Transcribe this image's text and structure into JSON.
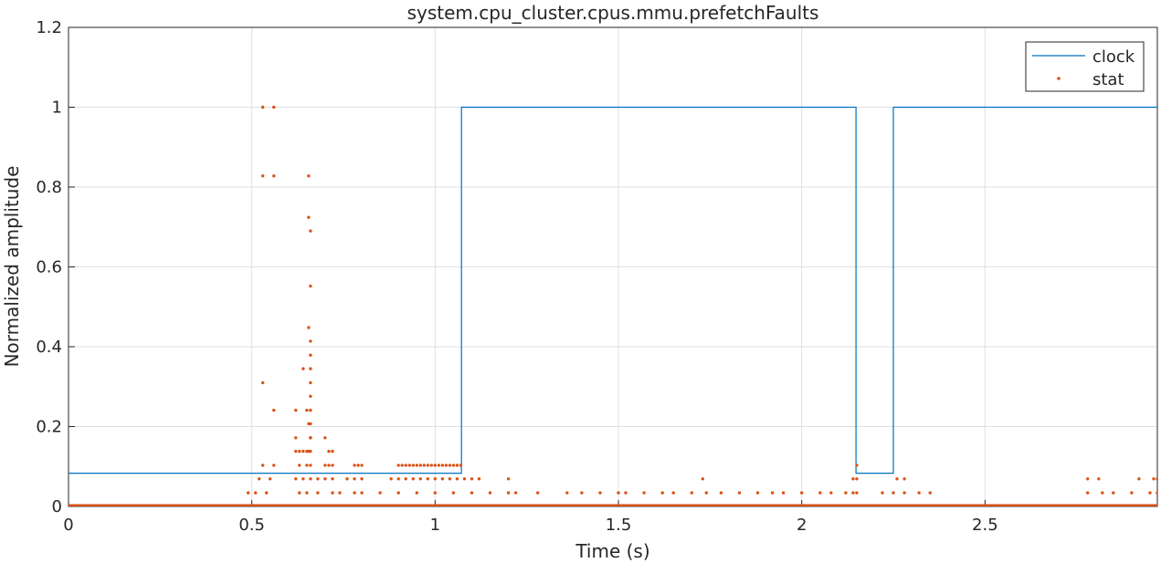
{
  "chart_data": {
    "type": "line",
    "title": "system.cpu_cluster.cpus.mmu.prefetchFaults",
    "xlabel": "Time (s)",
    "ylabel": "Normalized amplitude",
    "xlim": [
      0,
      2.97
    ],
    "ylim": [
      0,
      1.2
    ],
    "xticks": [
      0,
      0.5,
      1,
      1.5,
      2,
      2.5
    ],
    "xtick_labels": [
      "0",
      "0.5",
      "1",
      "1.5",
      "2",
      "2.5"
    ],
    "yticks": [
      0,
      0.2,
      0.4,
      0.6,
      0.8,
      1,
      1.2
    ],
    "ytick_labels": [
      "0",
      "0.2",
      "0.4",
      "0.6",
      "0.8",
      "1",
      "1.2"
    ],
    "grid": true,
    "legend_position": "top-right",
    "series": [
      {
        "name": "clock",
        "style": "line",
        "color": "#0072BD",
        "x": [
          0,
          1.072,
          1.072,
          2.148,
          2.148,
          2.25,
          2.25,
          2.97
        ],
        "y": [
          0.0833,
          0.0833,
          1,
          1,
          0.0833,
          0.0833,
          1,
          1
        ]
      },
      {
        "name": "stat",
        "style": "markers",
        "color": "#D95319",
        "x": [
          0.53,
          0.56,
          0.53,
          0.56,
          0.655,
          0.655,
          0.66,
          0.66,
          0.655,
          0.66,
          0.66,
          0.66,
          0.66,
          0.53,
          0.56,
          0.64,
          0.62,
          0.65,
          0.66,
          0.66,
          0.66,
          0.655,
          0.66,
          0.66,
          0.66,
          0.62,
          0.655,
          0.62,
          0.63,
          0.64,
          0.65,
          0.66,
          0.7,
          0.71,
          0.72,
          0.53,
          0.56,
          0.63,
          0.65,
          0.66,
          0.7,
          0.71,
          0.72,
          0.78,
          0.79,
          0.8,
          0.9,
          0.91,
          0.92,
          0.93,
          0.94,
          0.95,
          0.96,
          0.97,
          0.98,
          0.99,
          1.0,
          1.01,
          1.02,
          1.03,
          1.04,
          1.05,
          1.06,
          1.07,
          2.15,
          0.52,
          0.55,
          0.62,
          0.64,
          0.66,
          0.68,
          0.7,
          0.72,
          0.76,
          0.78,
          0.8,
          0.88,
          0.9,
          0.92,
          0.94,
          0.96,
          0.98,
          1.0,
          1.02,
          1.04,
          1.06,
          1.08,
          1.1,
          1.12,
          1.2,
          1.73,
          2.14,
          2.15,
          2.26,
          2.28,
          2.78,
          2.81,
          2.92,
          2.96,
          2.97,
          0.49,
          0.51,
          0.54,
          0.63,
          0.65,
          0.68,
          0.72,
          0.74,
          0.78,
          0.8,
          0.85,
          0.9,
          0.95,
          1.0,
          1.05,
          1.1,
          1.15,
          1.2,
          1.22,
          1.28,
          1.36,
          1.4,
          1.45,
          1.5,
          1.52,
          1.57,
          1.62,
          1.65,
          1.7,
          1.74,
          1.78,
          1.83,
          1.88,
          1.92,
          1.95,
          2.0,
          2.05,
          2.08,
          2.12,
          2.14,
          2.15,
          2.22,
          2.25,
          2.28,
          2.32,
          2.35,
          2.78,
          2.82,
          2.85,
          2.9,
          2.95,
          2.97
        ],
        "y": [
          1,
          1,
          0.828,
          0.828,
          0.828,
          0.724,
          0.69,
          0.552,
          0.448,
          0.414,
          0.379,
          0.345,
          0.31,
          0.31,
          0.241,
          0.345,
          0.241,
          0.241,
          0.276,
          0.241,
          0.207,
          0.207,
          0.172,
          0.172,
          0.172,
          0.138,
          0.138,
          0.172,
          0.138,
          0.138,
          0.138,
          0.138,
          0.172,
          0.138,
          0.138,
          0.103,
          0.103,
          0.103,
          0.103,
          0.103,
          0.103,
          0.103,
          0.103,
          0.103,
          0.103,
          0.103,
          0.103,
          0.103,
          0.103,
          0.103,
          0.103,
          0.103,
          0.103,
          0.103,
          0.103,
          0.103,
          0.103,
          0.103,
          0.103,
          0.103,
          0.103,
          0.103,
          0.103,
          0.103,
          0.103,
          0.069,
          0.069,
          0.069,
          0.069,
          0.069,
          0.069,
          0.069,
          0.069,
          0.069,
          0.069,
          0.069,
          0.069,
          0.069,
          0.069,
          0.069,
          0.069,
          0.069,
          0.069,
          0.069,
          0.069,
          0.069,
          0.069,
          0.069,
          0.069,
          0.069,
          0.069,
          0.069,
          0.069,
          0.069,
          0.069,
          0.069,
          0.069,
          0.069,
          0.069,
          0.069,
          0.034,
          0.034,
          0.034,
          0.034,
          0.034,
          0.034,
          0.034,
          0.034,
          0.034,
          0.034,
          0.034,
          0.034,
          0.034,
          0.034,
          0.034,
          0.034,
          0.034,
          0.034,
          0.034,
          0.034,
          0.034,
          0.034,
          0.034,
          0.034,
          0.034,
          0.034,
          0.034,
          0.034,
          0.034,
          0.034,
          0.034,
          0.034,
          0.034,
          0.034,
          0.034,
          0.034,
          0.034,
          0.034,
          0.034,
          0.034,
          0.034,
          0.034,
          0.034,
          0.034,
          0.034,
          0.034,
          0.034,
          0.034,
          0.034,
          0.034,
          0.034,
          0.034
        ]
      }
    ]
  }
}
